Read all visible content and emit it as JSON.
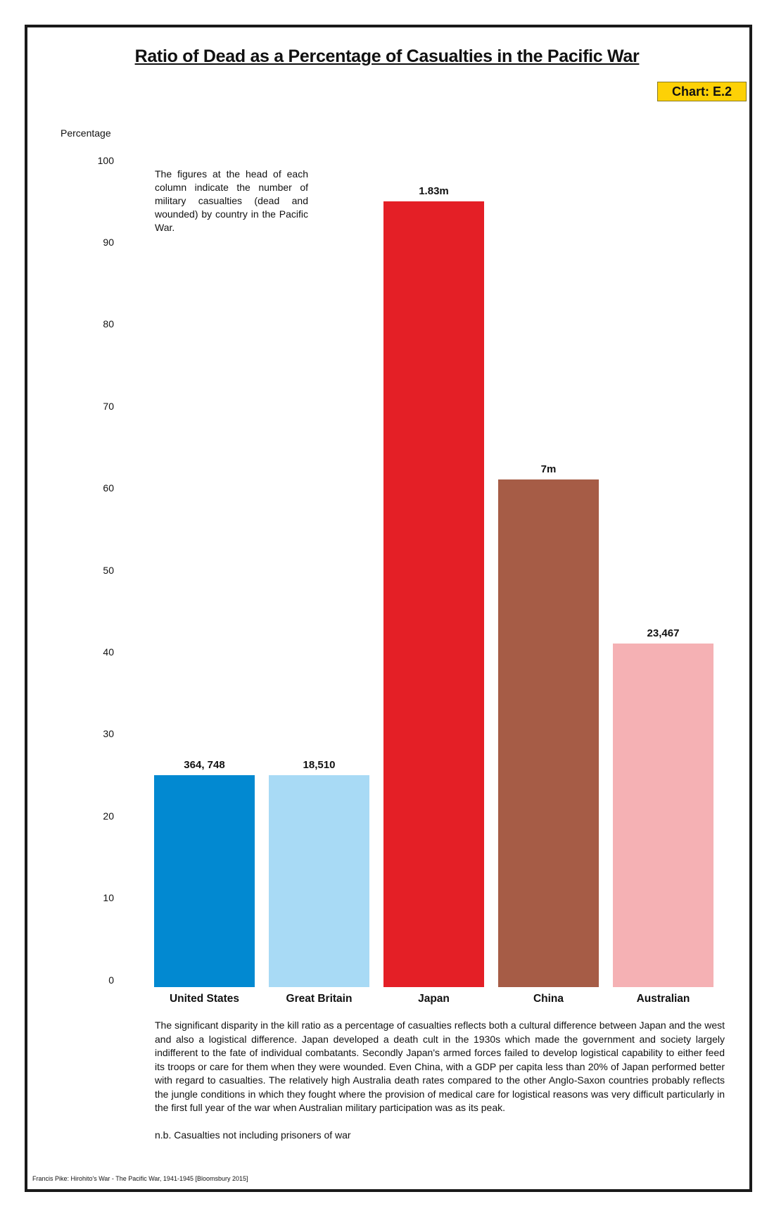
{
  "title": "Ratio of Dead as a Percentage of Casualties in the Pacific War",
  "badge": "Chart: E.2",
  "note": "The figures at the head of each column indicate the number of military casualties (dead and wounded) by country in the Pacific War.",
  "paragraph": "The significant disparity in the kill ratio as a percentage of casualties reflects both a cultural difference between Japan and the west and also a logistical difference.  Japan developed a death cult in the 1930s which made the government and society largely indifferent to the fate of individual combatants.  Secondly Japan's armed forces failed to develop logistical capability to either feed its troops or care for them when they were wounded.  Even China, with a GDP per capita less than 20% of Japan performed better with regard to casualties.  The relatively high Australia death rates compared to the other Anglo-Saxon countries probably reflects the jungle conditions in which they fought where the provision of medical care for logistical reasons was very difficult particularly in the first full year of the war when  Australian military participation was as its peak.",
  "nb": "n.b.  Casualties not including prisoners of war",
  "source": "Francis Pike:  Hirohito's War - The Pacific War, 1941-1945   [Bloomsbury 2015]",
  "chart_data": {
    "type": "bar",
    "title": "Ratio of Dead as a Percentage of Casualties in the Pacific War",
    "xlabel": "",
    "ylabel": "Percentage",
    "ylim": [
      0,
      100
    ],
    "yticks": [
      "0",
      "10",
      "20",
      "30",
      "40",
      "50",
      "60",
      "70",
      "80",
      "90",
      "100"
    ],
    "grid": false,
    "categories": [
      "United States",
      "Great Britain",
      "Japan",
      "China",
      "Australian"
    ],
    "values": [
      25,
      25,
      95,
      61,
      41
    ],
    "data_labels": [
      "364, 748",
      "18,510",
      "1.83m",
      "7m",
      "23,467"
    ],
    "colors": [
      "#0289d1",
      "#a8daf5",
      "#e41f26",
      "#a65c46",
      "#f5b1b4"
    ]
  }
}
